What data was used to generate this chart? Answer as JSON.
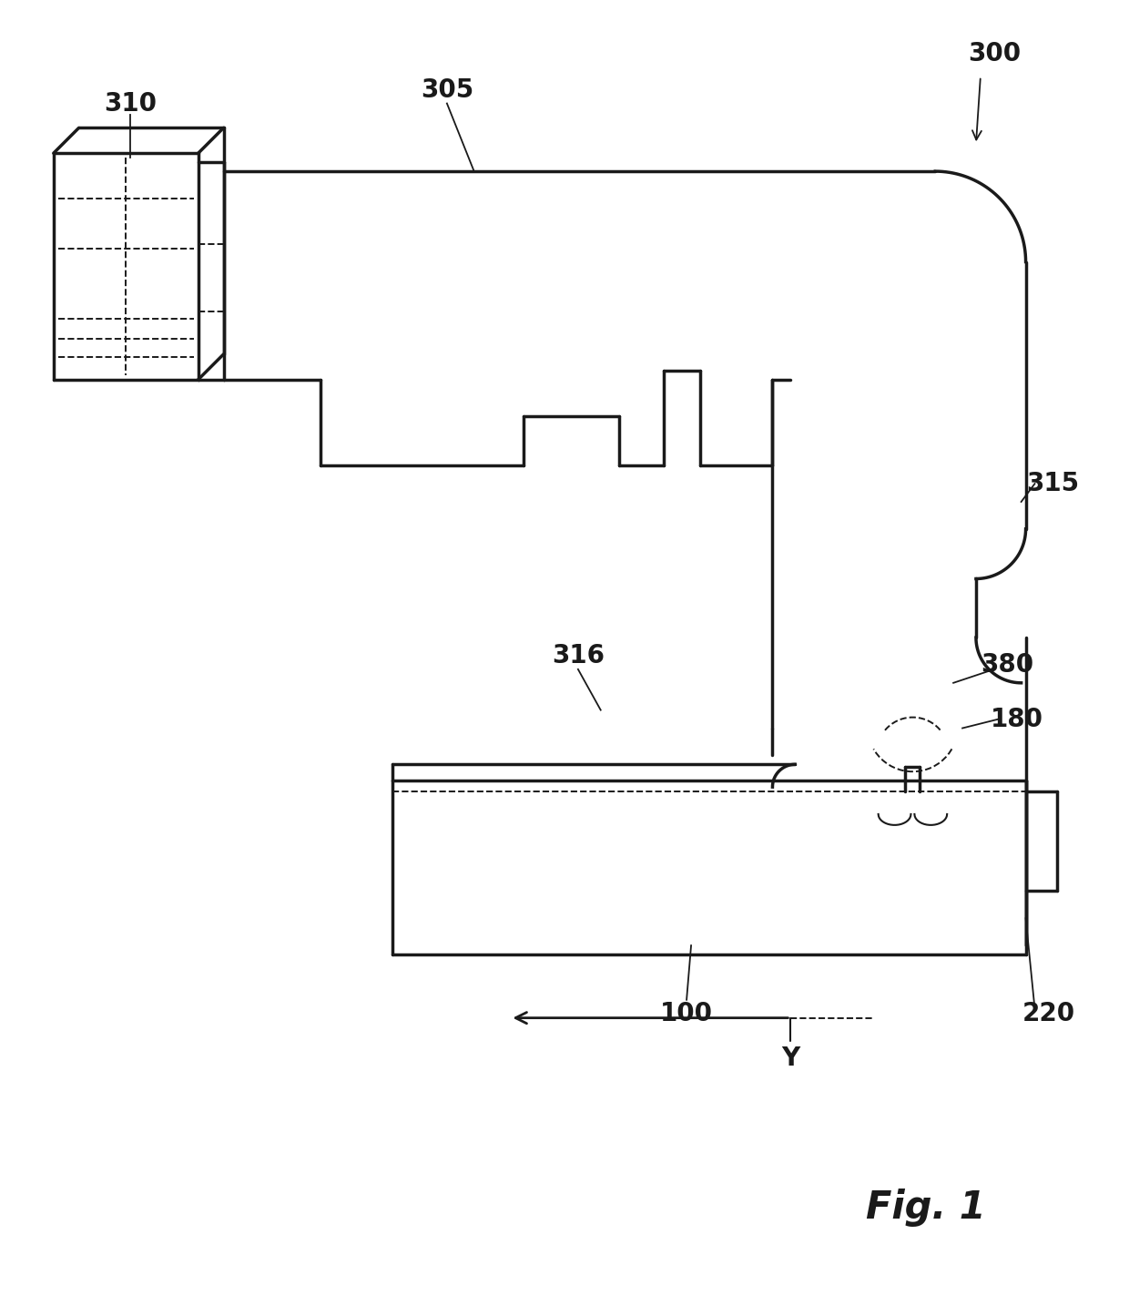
{
  "bg_color": "#ffffff",
  "line_color": "#1a1a1a",
  "line_width": 2.5,
  "thin_lw": 1.5,
  "dashed_lw": 1.4,
  "label_fontsize": 20,
  "fig_label_fontsize": 30,
  "annotation_lw": 1.3
}
